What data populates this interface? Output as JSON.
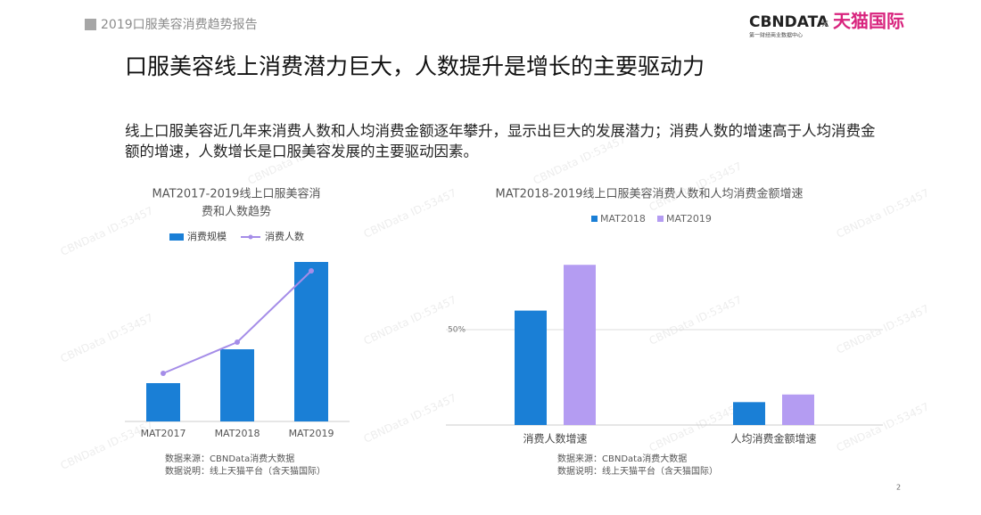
{
  "header": {
    "report": "2019口服美容消费趋势报告",
    "logo": "CBNDATA",
    "logo_sub": "第一财经商业数据中心",
    "logo_sep": "×",
    "partner": "天猫国际"
  },
  "title": "口服美容线上消费潜力巨大，人数提升是增长的主要驱动力",
  "description": [
    "线上口服美容近几年来消费人数和人均消费金额逐年攀升，显示出巨大的发展潜力；消费人数的增速高于人均消费金",
    "额的增速，人数增长是口服美容发展的主要驱动因素。"
  ],
  "watermark": "CBNData ID:53457",
  "page_number": "2",
  "chart_data": [
    {
      "type": "combo",
      "title": [
        "MAT2017-2019线上口服美容消",
        "费和人数趋势"
      ],
      "categories": [
        "MAT2017",
        "MAT2018",
        "MAT2019"
      ],
      "ylim": [
        0,
        190
      ],
      "series": [
        {
          "name": "消费规模",
          "type": "bar",
          "color": "#1a7fd6",
          "values": [
            43,
            81,
            179
          ]
        },
        {
          "name": "消费人数",
          "type": "line",
          "color": "#a58de8",
          "values": [
            54,
            89,
            169
          ]
        }
      ],
      "notes": [
        "数据来源：CBNData消费大数据",
        "数据说明：线上天猫平台（含天猫国际）"
      ]
    },
    {
      "type": "bar",
      "title": [
        "MAT2018-2019线上口服美容消费人数和人均消费金额增速"
      ],
      "categories": [
        "消费人数增速",
        "人均消费金额增速"
      ],
      "ylim": [
        0,
        90
      ],
      "yticks": [
        {
          "value": 50,
          "label": "50%"
        }
      ],
      "grid": true,
      "series": [
        {
          "name": "MAT2018",
          "color": "#1a7fd6",
          "values": [
            60,
            12
          ]
        },
        {
          "name": "MAT2019",
          "color": "#b49cf2",
          "values": [
            84,
            16
          ]
        }
      ],
      "notes": [
        "数据来源：CBNData消费大数据",
        "数据说明：线上天猫平台（含天猫国际）"
      ]
    }
  ]
}
